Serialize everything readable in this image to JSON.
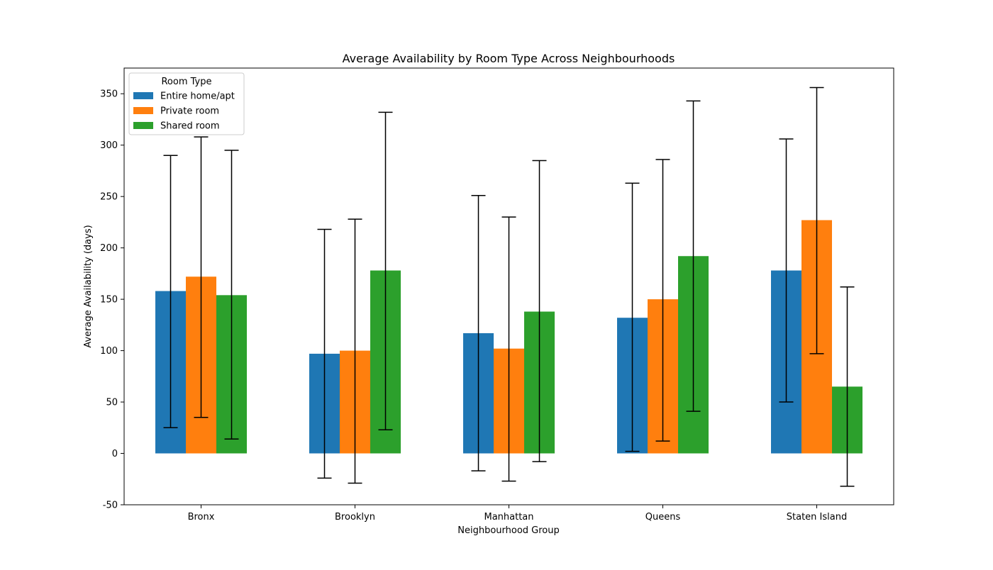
{
  "chart_data": {
    "type": "bar",
    "title": "Average Availability by Room Type Across Neighbourhoods",
    "xlabel": "Neighbourhood Group",
    "ylabel": "Average Availability (days)",
    "categories": [
      "Bronx",
      "Brooklyn",
      "Manhattan",
      "Queens",
      "Staten Island"
    ],
    "ylim": [
      -50,
      375
    ],
    "yticks": [
      -50,
      0,
      50,
      100,
      150,
      200,
      250,
      300,
      350
    ],
    "grid": false,
    "legend": {
      "title": "Room Type",
      "placement": "top-left"
    },
    "series": [
      {
        "name": "Entire home/apt",
        "color": "#1f77b4",
        "values": [
          158,
          97,
          117,
          132,
          178
        ],
        "error_low": [
          25,
          -24,
          -17,
          2,
          50
        ],
        "error_high": [
          290,
          218,
          251,
          263,
          306
        ]
      },
      {
        "name": "Private room",
        "color": "#ff7f0e",
        "values": [
          172,
          100,
          102,
          150,
          227
        ],
        "error_low": [
          35,
          -29,
          -27,
          12,
          97
        ],
        "error_high": [
          308,
          228,
          230,
          286,
          356
        ]
      },
      {
        "name": "Shared room",
        "color": "#2ca02c",
        "values": [
          154,
          178,
          138,
          192,
          65
        ],
        "error_low": [
          14,
          23,
          -8,
          41,
          -32
        ],
        "error_high": [
          295,
          332,
          285,
          343,
          162
        ]
      }
    ]
  }
}
